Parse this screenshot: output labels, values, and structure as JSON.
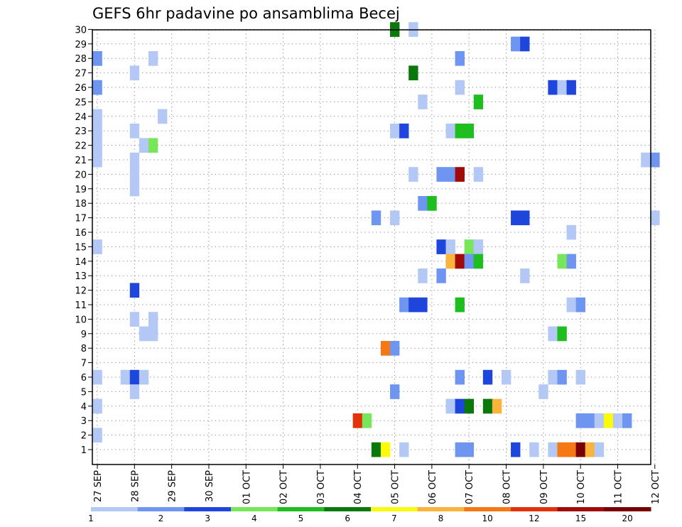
{
  "chart_data": {
    "type": "heatmap",
    "title": "GEFS 6hr padavine po ansamblima Becej",
    "xlabel": "",
    "ylabel": "",
    "x_axis": {
      "unit": "6-hour steps (col 0 = 27 SEP 00Z)",
      "tick_labels": [
        "27 SEP",
        "28 SEP",
        "29 SEP",
        "30 SEP",
        "01 OCT",
        "02 OCT",
        "03 OCT",
        "04 OCT",
        "05 OCT",
        "06 OCT",
        "07 OCT",
        "08 OCT",
        "09 OCT",
        "10 OCT",
        "11 OCT",
        "12 OCT"
      ],
      "range": [
        0,
        60
      ]
    },
    "y_axis": {
      "tick_labels": [
        "1",
        "2",
        "3",
        "4",
        "5",
        "6",
        "7",
        "8",
        "9",
        "10",
        "11",
        "12",
        "13",
        "14",
        "15",
        "16",
        "17",
        "18",
        "19",
        "20",
        "21",
        "22",
        "23",
        "24",
        "25",
        "26",
        "27",
        "28",
        "29",
        "30"
      ],
      "range": [
        1,
        30
      ]
    },
    "grid": true,
    "legend": {
      "position": "bottom",
      "bins": [
        {
          "color": "#b4c8f5",
          "label": "1"
        },
        {
          "color": "#6e96f0",
          "label": "2"
        },
        {
          "color": "#1e46dc",
          "label": "3"
        },
        {
          "color": "#78e65a",
          "label": "4"
        },
        {
          "color": "#1ebe1e",
          "label": "5"
        },
        {
          "color": "#0a780a",
          "label": "6"
        },
        {
          "color": "#fafa0a",
          "label": "7"
        },
        {
          "color": "#fab43c",
          "label": "8"
        },
        {
          "color": "#f57814",
          "label": "10"
        },
        {
          "color": "#e1320a",
          "label": "12"
        },
        {
          "color": "#a00a0a",
          "label": "15"
        },
        {
          "color": "#780000",
          "label": "20"
        }
      ]
    },
    "cells": [
      [
        30,
        32,
        5
      ],
      [
        30,
        34,
        0
      ],
      [
        29,
        45,
        1
      ],
      [
        29,
        46,
        2
      ],
      [
        28,
        0,
        1
      ],
      [
        28,
        6,
        0
      ],
      [
        28,
        39,
        1
      ],
      [
        27,
        4,
        0
      ],
      [
        27,
        34,
        5
      ],
      [
        26,
        0,
        1
      ],
      [
        26,
        39,
        0
      ],
      [
        26,
        49,
        2
      ],
      [
        26,
        50,
        0
      ],
      [
        26,
        51,
        2
      ],
      [
        25,
        35,
        0
      ],
      [
        25,
        41,
        4
      ],
      [
        24,
        0,
        0
      ],
      [
        24,
        7,
        0
      ],
      [
        23,
        0,
        0
      ],
      [
        23,
        4,
        0
      ],
      [
        23,
        32,
        0
      ],
      [
        23,
        33,
        2
      ],
      [
        23,
        38,
        0
      ],
      [
        23,
        39,
        4
      ],
      [
        23,
        40,
        4
      ],
      [
        22,
        0,
        0
      ],
      [
        22,
        5,
        0
      ],
      [
        22,
        6,
        3
      ],
      [
        21,
        0,
        0
      ],
      [
        21,
        4,
        0
      ],
      [
        21,
        59,
        0
      ],
      [
        21,
        60,
        1
      ],
      [
        20,
        4,
        0
      ],
      [
        20,
        34,
        0
      ],
      [
        20,
        37,
        1
      ],
      [
        20,
        38,
        1
      ],
      [
        20,
        39,
        10
      ],
      [
        20,
        41,
        0
      ],
      [
        19,
        4,
        0
      ],
      [
        18,
        35,
        1
      ],
      [
        18,
        36,
        4
      ],
      [
        17,
        30,
        1
      ],
      [
        17,
        32,
        0
      ],
      [
        17,
        45,
        2
      ],
      [
        17,
        46,
        2
      ],
      [
        17,
        60,
        0
      ],
      [
        16,
        51,
        0
      ],
      [
        15,
        0,
        0
      ],
      [
        15,
        37,
        2
      ],
      [
        15,
        38,
        0
      ],
      [
        15,
        40,
        3
      ],
      [
        15,
        41,
        0
      ],
      [
        14,
        38,
        7
      ],
      [
        14,
        39,
        10
      ],
      [
        14,
        40,
        1
      ],
      [
        14,
        41,
        4
      ],
      [
        14,
        50,
        3
      ],
      [
        14,
        51,
        1
      ],
      [
        13,
        35,
        0
      ],
      [
        13,
        37,
        1
      ],
      [
        13,
        46,
        0
      ],
      [
        12,
        4,
        2
      ],
      [
        11,
        33,
        1
      ],
      [
        11,
        34,
        2
      ],
      [
        11,
        35,
        2
      ],
      [
        11,
        39,
        4
      ],
      [
        11,
        51,
        0
      ],
      [
        11,
        52,
        1
      ],
      [
        10,
        4,
        0
      ],
      [
        10,
        6,
        0
      ],
      [
        9,
        5,
        0
      ],
      [
        9,
        6,
        0
      ],
      [
        9,
        49,
        0
      ],
      [
        9,
        50,
        4
      ],
      [
        8,
        31,
        8
      ],
      [
        8,
        32,
        1
      ],
      [
        6,
        0,
        0
      ],
      [
        6,
        3,
        0
      ],
      [
        6,
        4,
        2
      ],
      [
        6,
        5,
        0
      ],
      [
        6,
        39,
        1
      ],
      [
        6,
        42,
        2
      ],
      [
        6,
        44,
        0
      ],
      [
        6,
        49,
        0
      ],
      [
        6,
        50,
        1
      ],
      [
        6,
        52,
        0
      ],
      [
        5,
        4,
        0
      ],
      [
        5,
        32,
        1
      ],
      [
        5,
        48,
        0
      ],
      [
        4,
        0,
        0
      ],
      [
        4,
        38,
        0
      ],
      [
        4,
        39,
        2
      ],
      [
        4,
        40,
        5
      ],
      [
        4,
        42,
        5
      ],
      [
        4,
        43,
        7
      ],
      [
        3,
        28,
        9
      ],
      [
        3,
        29,
        3
      ],
      [
        3,
        52,
        1
      ],
      [
        3,
        53,
        1
      ],
      [
        3,
        54,
        0
      ],
      [
        3,
        55,
        6
      ],
      [
        3,
        56,
        0
      ],
      [
        3,
        57,
        1
      ],
      [
        2,
        0,
        0
      ],
      [
        1,
        30,
        5
      ],
      [
        1,
        31,
        6
      ],
      [
        1,
        33,
        0
      ],
      [
        1,
        39,
        1
      ],
      [
        1,
        40,
        1
      ],
      [
        1,
        45,
        2
      ],
      [
        1,
        47,
        0
      ],
      [
        1,
        49,
        0
      ],
      [
        1,
        50,
        8
      ],
      [
        1,
        51,
        8
      ],
      [
        1,
        52,
        11
      ],
      [
        1,
        53,
        7
      ],
      [
        1,
        54,
        0
      ]
    ]
  }
}
